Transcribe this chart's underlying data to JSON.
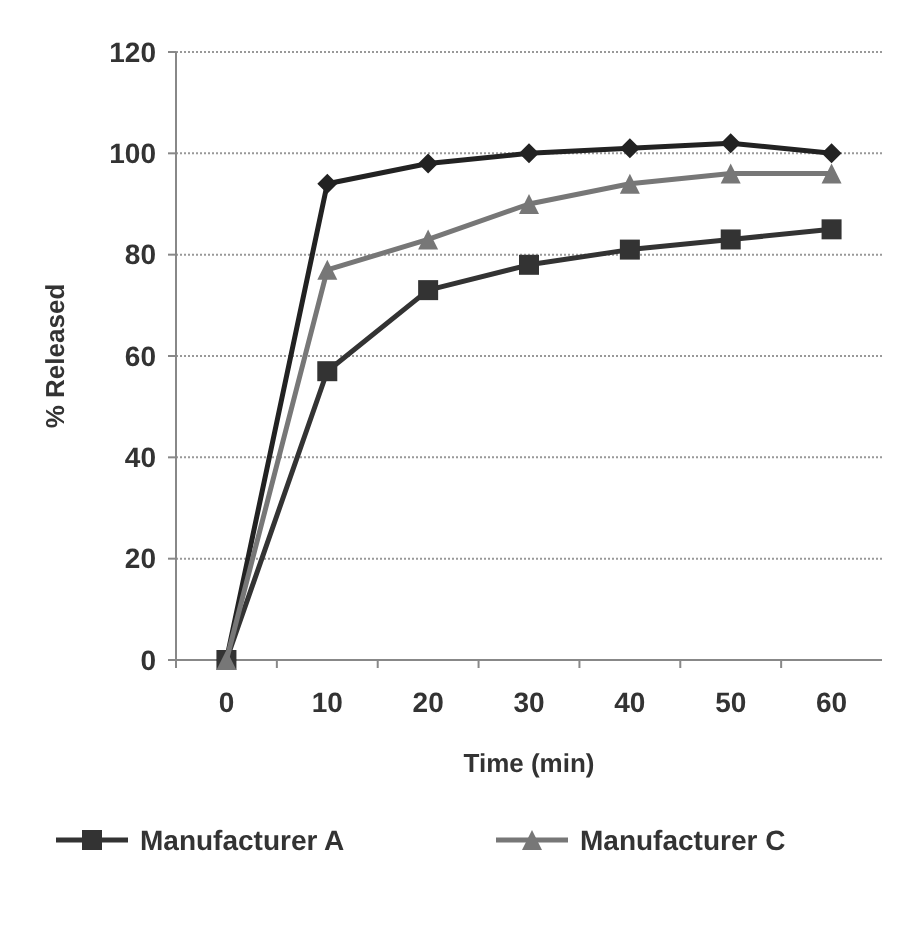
{
  "chart_data": {
    "type": "line",
    "xlabel": "Time (min)",
    "ylabel": "% Released",
    "categories": [
      "0",
      "10",
      "20",
      "30",
      "40",
      "50",
      "60"
    ],
    "series": [
      {
        "color": "#222222",
        "marker": "diamond",
        "values": [
          0,
          94,
          98,
          100,
          101,
          102,
          100
        ]
      },
      {
        "name": "Manufacturer A",
        "color": "#333333",
        "marker": "square",
        "values": [
          0,
          57,
          73,
          78,
          81,
          83,
          85
        ]
      },
      {
        "name": "Manufacturer C",
        "color": "#777777",
        "marker": "triangle",
        "values": [
          0,
          77,
          83,
          90,
          94,
          96,
          96
        ]
      }
    ],
    "ylim": [
      0,
      120
    ],
    "yticks": [
      0,
      20,
      40,
      60,
      80,
      100,
      120
    ],
    "grid": "y",
    "legend": "bottom"
  }
}
